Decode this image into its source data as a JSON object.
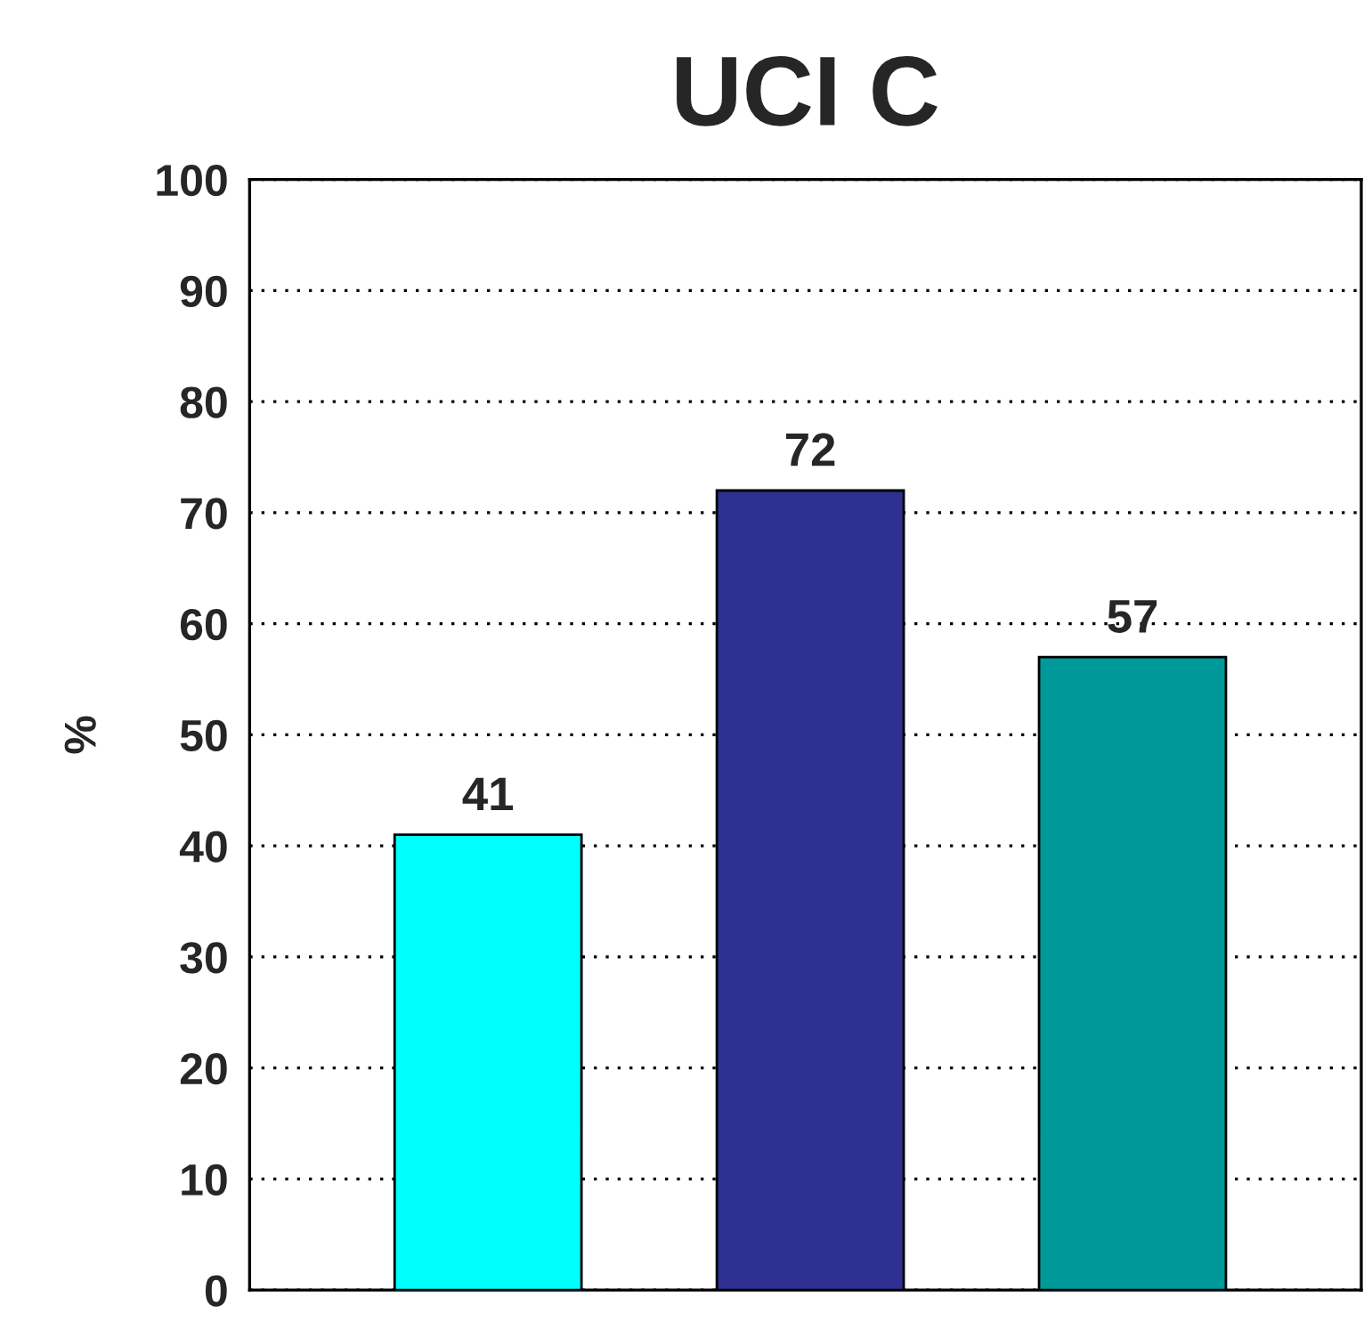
{
  "chart_data": {
    "type": "bar",
    "title": "UCI C",
    "ylabel": "%",
    "categories": [
      null,
      null,
      null
    ],
    "values": [
      41,
      72,
      57
    ],
    "colors": [
      "#00ffff",
      "#2e3192",
      "#009999"
    ],
    "ylim": [
      0,
      100
    ],
    "yticks": [
      0,
      10,
      20,
      30,
      40,
      50,
      60,
      70,
      80,
      90,
      100
    ],
    "grid": "y",
    "data_labels": true,
    "tick_labels": "y"
  }
}
